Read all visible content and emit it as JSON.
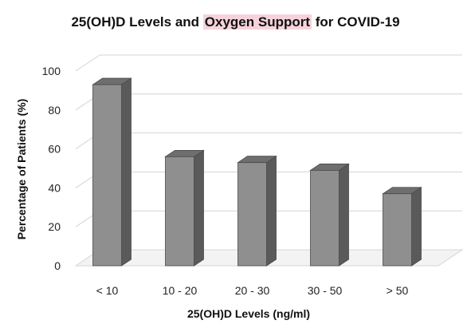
{
  "title": {
    "prefix": "25(OH)D Levels and ",
    "highlight": "Oxygen Support",
    "suffix": " for COVID-19"
  },
  "colors": {
    "bar_front": "#8f8f8f",
    "bar_side": "#5a5a5a",
    "bar_top": "#6e6e6e",
    "bar_outline": "#4a4a4a",
    "gridline": "#d4d4d4",
    "title_highlight": "#f6d3dc"
  },
  "chart_data": {
    "type": "bar",
    "style": "3d-column",
    "title": "25(OH)D Levels and Oxygen Support for COVID-19",
    "xlabel": "25(OH)D Levels (ng/ml)",
    "ylabel": "Percentage of Patients (%)",
    "categories": [
      "< 10",
      "10 - 20",
      "20 - 30",
      "30 - 50",
      "> 50"
    ],
    "values": [
      93,
      56,
      53,
      49,
      37
    ],
    "ylim": [
      0,
      100
    ],
    "yticks": [
      0,
      20,
      40,
      60,
      80,
      100
    ],
    "grid": true,
    "legend": "none"
  }
}
